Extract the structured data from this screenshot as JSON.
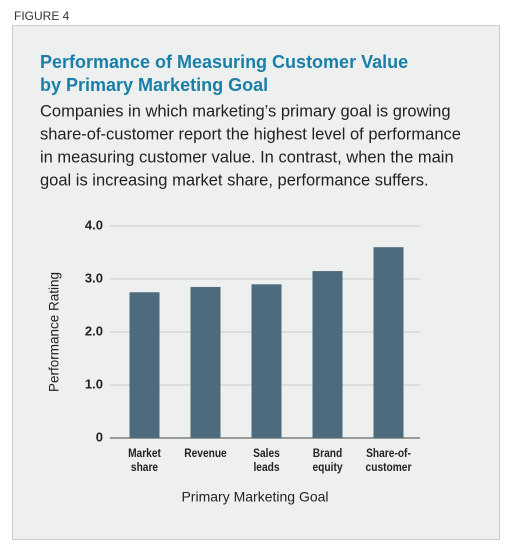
{
  "figure_label": "FIGURE 4",
  "chart_data": {
    "type": "bar",
    "title": [
      "Performance of Measuring Customer Value",
      "by Primary Marketing Goal"
    ],
    "subtitle": [
      "Companies in which marketing’s primary goal is growing",
      "share-of-customer report the highest level of performance",
      "in measuring customer value. In contrast, when the main",
      "goal is increasing market share, performance suffers."
    ],
    "y_label": "Performance Rating",
    "x_label": "Primary Marketing Goal",
    "categories": [
      [
        "Market",
        "share"
      ],
      [
        "Revenue"
      ],
      [
        "Sales",
        "leads"
      ],
      [
        "Brand",
        "equity"
      ],
      [
        "Share-of-",
        "customer"
      ]
    ],
    "values": [
      2.75,
      2.85,
      2.9,
      3.15,
      3.6
    ],
    "color": "#4d6b7d",
    "ylim": [
      0,
      4
    ],
    "yticks": [
      0,
      {
        "value": 1,
        "label": "1.0"
      },
      {
        "value": 2,
        "label": "2.0"
      },
      {
        "value": 3,
        "label": "3.0"
      },
      {
        "value": 4,
        "label": "4.0"
      }
    ],
    "grid": true
  }
}
